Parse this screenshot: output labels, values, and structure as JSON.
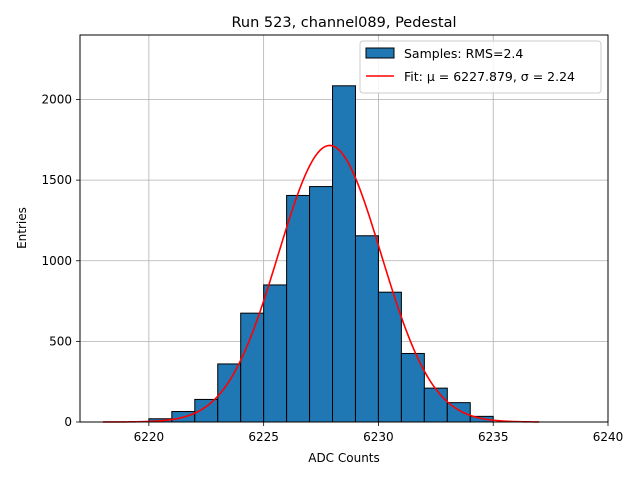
{
  "chart_data": {
    "type": "bar",
    "title": "Run 523, channel089, Pedestal",
    "xlabel": "ADC Counts",
    "ylabel": "Entries",
    "xlim": [
      6217,
      6240
    ],
    "ylim": [
      0,
      2400
    ],
    "xticks": [
      6220,
      6225,
      6230,
      6235,
      6240
    ],
    "yticks": [
      0,
      500,
      1000,
      1500,
      2000
    ],
    "grid": true,
    "legend_position": "top-right",
    "bar_color": "#1f77b4",
    "fit_color": "#ff0000",
    "bins": [
      {
        "x0": 6220,
        "x1": 6221,
        "count": 20
      },
      {
        "x0": 6221,
        "x1": 6222,
        "count": 65
      },
      {
        "x0": 6222,
        "x1": 6223,
        "count": 140
      },
      {
        "x0": 6223,
        "x1": 6224,
        "count": 360
      },
      {
        "x0": 6224,
        "x1": 6225,
        "count": 675
      },
      {
        "x0": 6225,
        "x1": 6226,
        "count": 850
      },
      {
        "x0": 6226,
        "x1": 6227,
        "count": 1405
      },
      {
        "x0": 6227,
        "x1": 6228,
        "count": 1460
      },
      {
        "x0": 6228,
        "x1": 6229,
        "count": 2085
      },
      {
        "x0": 6229,
        "x1": 6230,
        "count": 1155
      },
      {
        "x0": 6230,
        "x1": 6231,
        "count": 805
      },
      {
        "x0": 6231,
        "x1": 6232,
        "count": 425
      },
      {
        "x0": 6232,
        "x1": 6233,
        "count": 210
      },
      {
        "x0": 6233,
        "x1": 6234,
        "count": 120
      },
      {
        "x0": 6234,
        "x1": 6235,
        "count": 35
      }
    ],
    "fit": {
      "mu": 6227.879,
      "sigma": 2.24,
      "amplitude": 1715,
      "x_range": [
        6218,
        6237
      ]
    },
    "legend": [
      {
        "label": "Samples: RMS=2.4",
        "kind": "patch"
      },
      {
        "label": "Fit: μ = 6227.879, σ = 2.24",
        "kind": "line"
      }
    ]
  }
}
